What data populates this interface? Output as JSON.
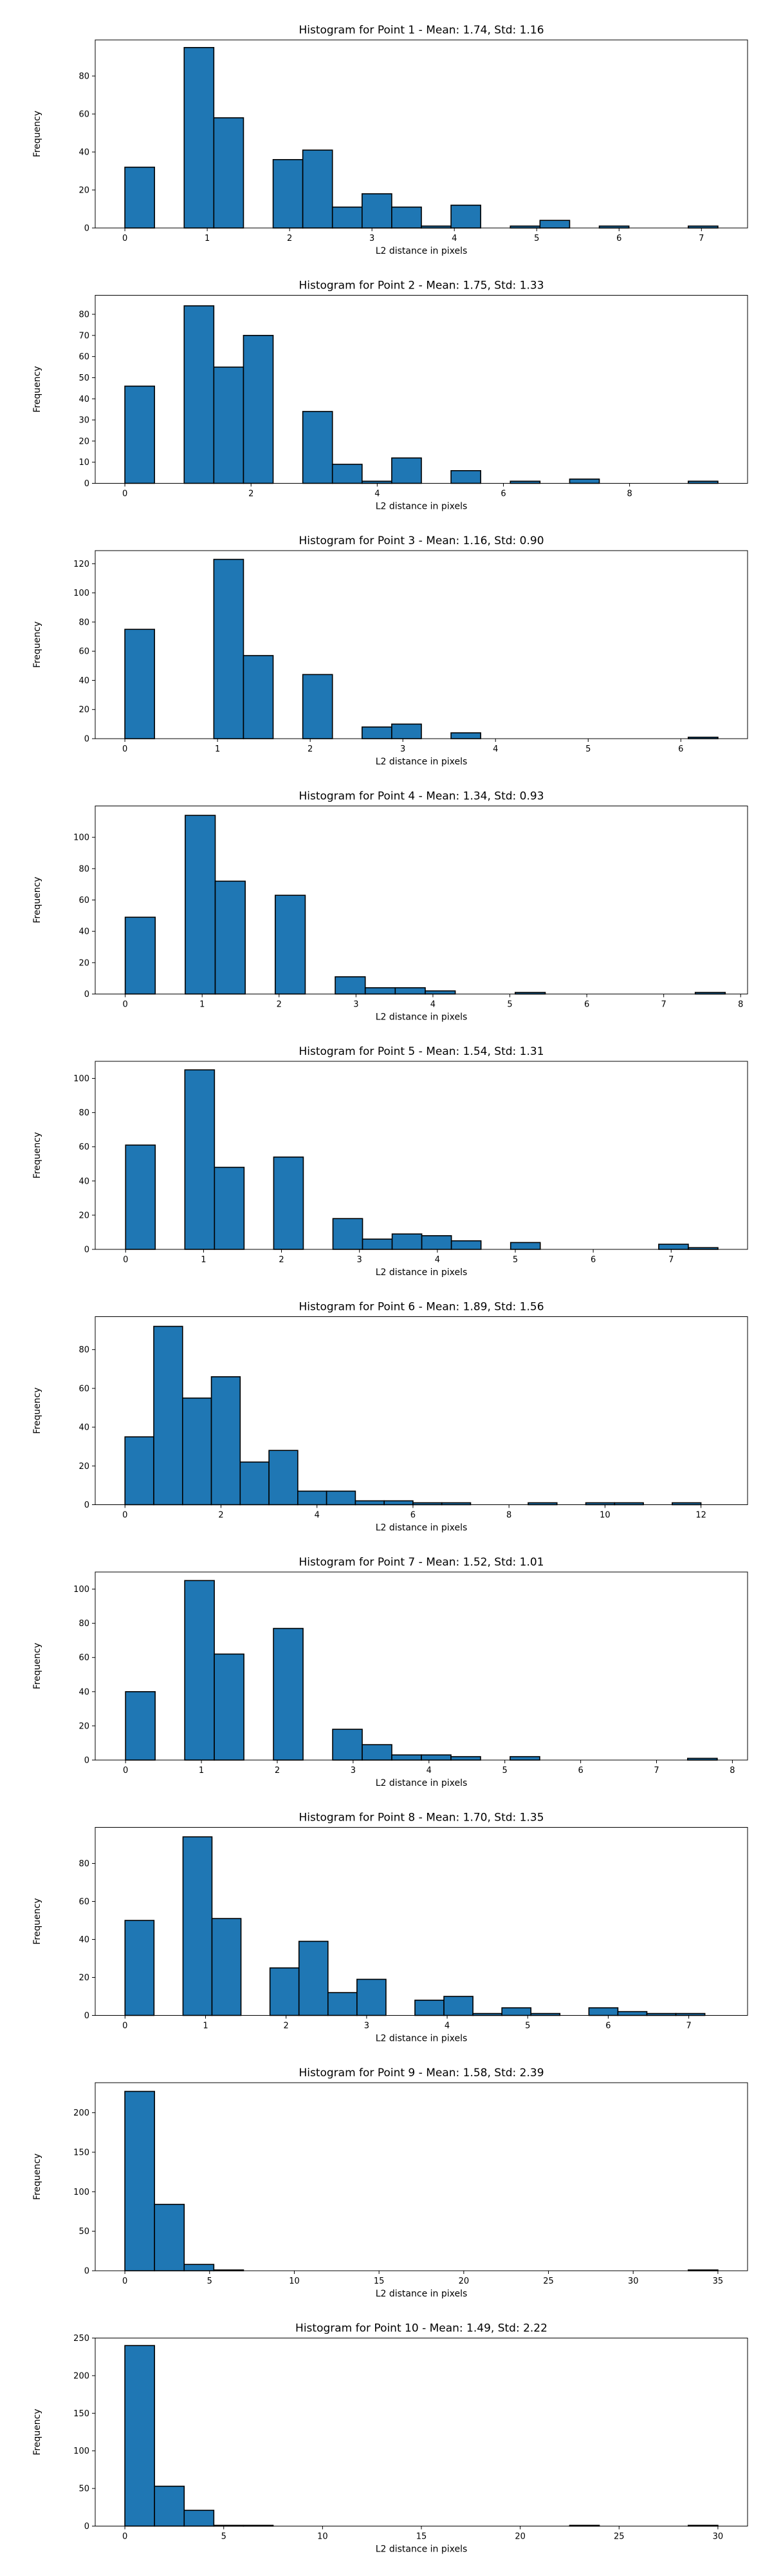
{
  "figure": {
    "bar_color": "#1f77b4",
    "edge_color": "#000000",
    "background": "#ffffff"
  },
  "chart_data": [
    {
      "type": "bar",
      "title": "Histogram for Point 1 - Mean: 1.74, Std: 1.16",
      "xlabel": "L2 distance in pixels",
      "ylabel": "Frequency",
      "xlim": [
        -0.36,
        7.56
      ],
      "ylim": [
        0,
        99
      ],
      "xticks": [
        0,
        1,
        2,
        3,
        4,
        5,
        6,
        7
      ],
      "yticks": [
        0,
        20,
        40,
        60,
        80
      ],
      "bins": [
        0,
        0.36,
        0.72,
        1.08,
        1.44,
        1.8,
        2.16,
        2.52,
        2.88,
        3.24,
        3.6,
        3.96,
        4.32,
        4.68,
        5.04,
        5.4,
        5.76,
        6.12,
        6.48,
        6.84,
        7.2
      ],
      "counts": [
        32,
        0,
        95,
        58,
        0,
        36,
        41,
        11,
        18,
        11,
        1,
        12,
        0,
        1,
        4,
        0,
        1,
        0,
        0,
        1
      ],
      "grid": false,
      "legend": "none"
    },
    {
      "type": "bar",
      "title": "Histogram for Point 2 - Mean: 1.75, Std: 1.33",
      "xlabel": "L2 distance in pixels",
      "ylabel": "Frequency",
      "xlim": [
        -0.47,
        9.87
      ],
      "ylim": [
        0,
        89
      ],
      "xticks": [
        0,
        2,
        4,
        6,
        8
      ],
      "yticks": [
        0,
        10,
        20,
        30,
        40,
        50,
        60,
        70,
        80
      ],
      "bins": [
        0,
        0.47,
        0.94,
        1.41,
        1.88,
        2.35,
        2.82,
        3.29,
        3.76,
        4.23,
        4.7,
        5.17,
        5.64,
        6.11,
        6.58,
        7.05,
        7.52,
        7.99,
        8.46,
        8.93,
        9.4
      ],
      "counts": [
        46,
        0,
        84,
        55,
        70,
        0,
        34,
        9,
        1,
        12,
        0,
        6,
        0,
        1,
        0,
        2,
        0,
        0,
        0,
        1
      ],
      "grid": false,
      "legend": "none"
    },
    {
      "type": "bar",
      "title": "Histogram for Point 3 - Mean: 1.16, Std: 0.90",
      "xlabel": "L2 distance in pixels",
      "ylabel": "Frequency",
      "xlim": [
        -0.32,
        6.72
      ],
      "ylim": [
        0,
        129
      ],
      "xticks": [
        0,
        1,
        2,
        3,
        4,
        5,
        6
      ],
      "yticks": [
        0,
        20,
        40,
        60,
        80,
        100,
        120
      ],
      "bins": [
        0,
        0.32,
        0.64,
        0.96,
        1.28,
        1.6,
        1.92,
        2.24,
        2.56,
        2.88,
        3.2,
        3.52,
        3.84,
        4.16,
        4.48,
        4.8,
        5.12,
        5.44,
        5.76,
        6.08,
        6.4
      ],
      "counts": [
        75,
        0,
        0,
        123,
        57,
        0,
        44,
        0,
        8,
        10,
        0,
        4,
        0,
        0,
        0,
        0,
        0,
        0,
        0,
        1
      ],
      "grid": false,
      "legend": "none"
    },
    {
      "type": "bar",
      "title": "Histogram for Point 4 - Mean: 1.34, Std: 0.93",
      "xlabel": "L2 distance in pixels",
      "ylabel": "Frequency",
      "xlim": [
        -0.39,
        8.09
      ],
      "ylim": [
        0,
        120
      ],
      "xticks": [
        0,
        1,
        2,
        3,
        4,
        5,
        6,
        7,
        8
      ],
      "yticks": [
        0,
        20,
        40,
        60,
        80,
        100
      ],
      "bins": [
        0,
        0.39,
        0.78,
        1.17,
        1.56,
        1.95,
        2.34,
        2.73,
        3.12,
        3.51,
        3.9,
        4.29,
        4.68,
        5.07,
        5.46,
        5.85,
        6.24,
        6.63,
        7.02,
        7.41,
        7.8
      ],
      "counts": [
        49,
        0,
        114,
        72,
        0,
        63,
        0,
        11,
        4,
        4,
        2,
        0,
        0,
        1,
        0,
        0,
        0,
        0,
        0,
        1
      ],
      "grid": false,
      "legend": "none"
    },
    {
      "type": "bar",
      "title": "Histogram for Point 5 - Mean: 1.54, Std: 1.31",
      "xlabel": "L2 distance in pixels",
      "ylabel": "Frequency",
      "xlim": [
        -0.39,
        7.98
      ],
      "ylim": [
        0,
        110
      ],
      "xticks": [
        0,
        1,
        2,
        3,
        4,
        5,
        6,
        7
      ],
      "yticks": [
        0,
        20,
        40,
        60,
        80,
        100
      ],
      "bins": [
        0,
        0.38,
        0.76,
        1.14,
        1.52,
        1.9,
        2.28,
        2.66,
        3.04,
        3.42,
        3.8,
        4.18,
        4.56,
        4.94,
        5.32,
        5.7,
        6.08,
        6.46,
        6.84,
        7.22,
        7.6
      ],
      "counts": [
        61,
        0,
        105,
        48,
        0,
        54,
        0,
        18,
        6,
        9,
        8,
        5,
        0,
        4,
        0,
        0,
        0,
        0,
        3,
        1
      ],
      "grid": false,
      "legend": "none"
    },
    {
      "type": "bar",
      "title": "Histogram for Point 6 - Mean: 1.89, Std: 1.56",
      "xlabel": "L2 distance in pixels",
      "ylabel": "Frequency",
      "xlim": [
        -0.62,
        12.97
      ],
      "ylim": [
        0,
        97
      ],
      "xticks": [
        0,
        2,
        4,
        6,
        8,
        10,
        12
      ],
      "yticks": [
        0,
        20,
        40,
        60,
        80
      ],
      "bins": [
        0,
        0.6,
        1.2,
        1.8,
        2.4,
        3.0,
        3.6,
        4.2,
        4.8,
        5.4,
        6.0,
        6.6,
        7.2,
        7.8,
        8.4,
        9.0,
        9.6,
        10.2,
        10.8,
        11.4,
        12.0
      ],
      "counts": [
        35,
        92,
        55,
        66,
        22,
        28,
        7,
        7,
        2,
        2,
        1,
        1,
        0,
        0,
        1,
        0,
        1,
        1,
        0,
        1
      ],
      "grid": false,
      "legend": "none"
    },
    {
      "type": "bar",
      "title": "Histogram for Point 7 - Mean: 1.52, Std: 1.01",
      "xlabel": "L2 distance in pixels",
      "ylabel": "Frequency",
      "xlim": [
        -0.4,
        8.2
      ],
      "ylim": [
        0,
        110
      ],
      "xticks": [
        0,
        1,
        2,
        3,
        4,
        5,
        6,
        7,
        8
      ],
      "yticks": [
        0,
        20,
        40,
        60,
        80,
        100
      ],
      "bins": [
        0,
        0.39,
        0.78,
        1.17,
        1.56,
        1.95,
        2.34,
        2.73,
        3.12,
        3.51,
        3.9,
        4.29,
        4.68,
        5.07,
        5.46,
        5.85,
        6.24,
        6.63,
        7.02,
        7.41,
        7.8
      ],
      "counts": [
        40,
        0,
        105,
        62,
        0,
        77,
        0,
        18,
        9,
        3,
        3,
        2,
        0,
        2,
        0,
        0,
        0,
        0,
        0,
        1
      ],
      "grid": false,
      "legend": "none"
    },
    {
      "type": "bar",
      "title": "Histogram for Point 8 - Mean: 1.70, Std: 1.35",
      "xlabel": "L2 distance in pixels",
      "ylabel": "Frequency",
      "xlim": [
        -0.37,
        7.73
      ],
      "ylim": [
        0,
        99
      ],
      "xticks": [
        0,
        1,
        2,
        3,
        4,
        5,
        6,
        7
      ],
      "yticks": [
        0,
        20,
        40,
        60,
        80
      ],
      "bins": [
        0,
        0.36,
        0.72,
        1.08,
        1.44,
        1.8,
        2.16,
        2.52,
        2.88,
        3.24,
        3.6,
        3.96,
        4.32,
        4.68,
        5.04,
        5.4,
        5.76,
        6.12,
        6.48,
        6.84,
        7.2
      ],
      "counts": [
        50,
        0,
        94,
        51,
        0,
        25,
        39,
        12,
        19,
        0,
        8,
        10,
        1,
        4,
        1,
        0,
        4,
        2,
        1,
        1
      ],
      "grid": false,
      "legend": "none"
    },
    {
      "type": "bar",
      "title": "Histogram for Point 9 - Mean: 1.58, Std: 2.39",
      "xlabel": "L2 distance in pixels",
      "ylabel": "Frequency",
      "xlim": [
        -1.75,
        36.75
      ],
      "ylim": [
        0,
        238
      ],
      "xticks": [
        0,
        5,
        10,
        15,
        20,
        25,
        30,
        35
      ],
      "yticks": [
        0,
        50,
        100,
        150,
        200
      ],
      "bins": [
        0,
        1.75,
        3.5,
        5.25,
        7.0,
        8.75,
        10.5,
        12.25,
        14.0,
        15.75,
        17.5,
        19.25,
        21.0,
        22.75,
        24.5,
        26.25,
        28.0,
        29.75,
        31.5,
        33.25,
        35.0
      ],
      "counts": [
        227,
        84,
        8,
        1,
        0,
        0,
        0,
        0,
        0,
        0,
        0,
        0,
        0,
        0,
        0,
        0,
        0,
        0,
        0,
        1
      ],
      "grid": false,
      "legend": "none"
    },
    {
      "type": "bar",
      "title": "Histogram for Point 10 - Mean: 1.49, Std: 2.22",
      "xlabel": "L2 distance in pixels",
      "ylabel": "Frequency",
      "xlim": [
        -1.5,
        31.5
      ],
      "ylim": [
        0,
        250
      ],
      "xticks": [
        0,
        5,
        10,
        15,
        20,
        25,
        30
      ],
      "yticks": [
        0,
        50,
        100,
        150,
        200,
        250
      ],
      "bins": [
        0,
        1.5,
        3.0,
        4.5,
        6.0,
        7.5,
        9.0,
        10.5,
        12.0,
        13.5,
        15.0,
        16.5,
        18.0,
        19.5,
        21.0,
        22.5,
        24.0,
        25.5,
        27.0,
        28.5,
        30.0
      ],
      "counts": [
        240,
        53,
        21,
        1,
        1,
        0,
        0,
        0,
        0,
        0,
        0,
        0,
        0,
        0,
        0,
        1,
        0,
        0,
        0,
        1
      ],
      "grid": false,
      "legend": "none"
    }
  ]
}
